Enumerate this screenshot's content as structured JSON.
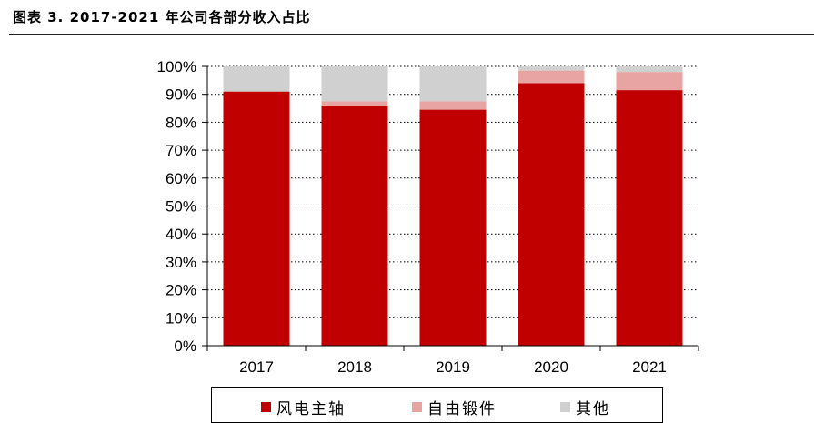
{
  "page": {
    "title": "图表 3. 2017-2021 年公司各部分收入占比"
  },
  "chart_data": {
    "type": "bar",
    "stacked": true,
    "title": "",
    "xlabel": "",
    "ylabel": "",
    "ylim": [
      0,
      100
    ],
    "ytick_labels": [
      "0%",
      "10%",
      "20%",
      "30%",
      "40%",
      "50%",
      "60%",
      "70%",
      "80%",
      "90%",
      "100%"
    ],
    "categories": [
      "2017",
      "2018",
      "2019",
      "2020",
      "2021"
    ],
    "series": [
      {
        "name": "风电主轴",
        "color": "#C00000",
        "values": [
          91,
          86,
          84.5,
          94,
          91.5
        ]
      },
      {
        "name": "自由锻件",
        "color": "#E8A3A3",
        "values": [
          0,
          1.5,
          3,
          4.5,
          6.5
        ]
      },
      {
        "name": "其他",
        "color": "#D0D0D0",
        "values": [
          9,
          12.5,
          12.5,
          1.5,
          2
        ]
      }
    ],
    "grid": "horizontal-dotted",
    "legend_position": "bottom"
  }
}
